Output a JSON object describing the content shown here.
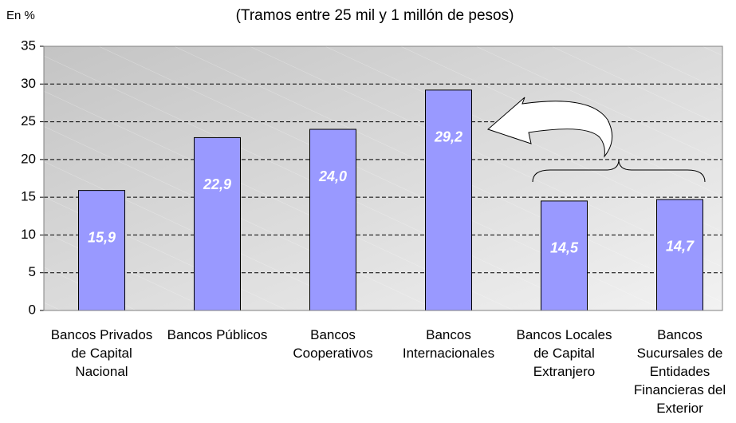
{
  "chart_data": {
    "type": "bar",
    "title": "(Tramos entre 25 mil y 1 millón de pesos)",
    "y_label": "En %",
    "categories": [
      "Bancos Privados de Capital Nacional",
      "Bancos Públicos",
      "Bancos Cooperativos",
      "Bancos Internacionales",
      "Bancos Locales de Capital Extranjero",
      "Bancos Sucursales de Entidades Financieras del Exterior"
    ],
    "values": [
      15.9,
      22.9,
      24.0,
      29.2,
      14.5,
      14.7
    ],
    "value_labels": [
      "15,9",
      "22,9",
      "24,0",
      "29,2",
      "14,5",
      "14,7"
    ],
    "color": "#9999ff",
    "ylim": [
      0,
      35
    ],
    "yticks": [
      0,
      5,
      10,
      15,
      20,
      25,
      30,
      35
    ],
    "grid": true
  }
}
